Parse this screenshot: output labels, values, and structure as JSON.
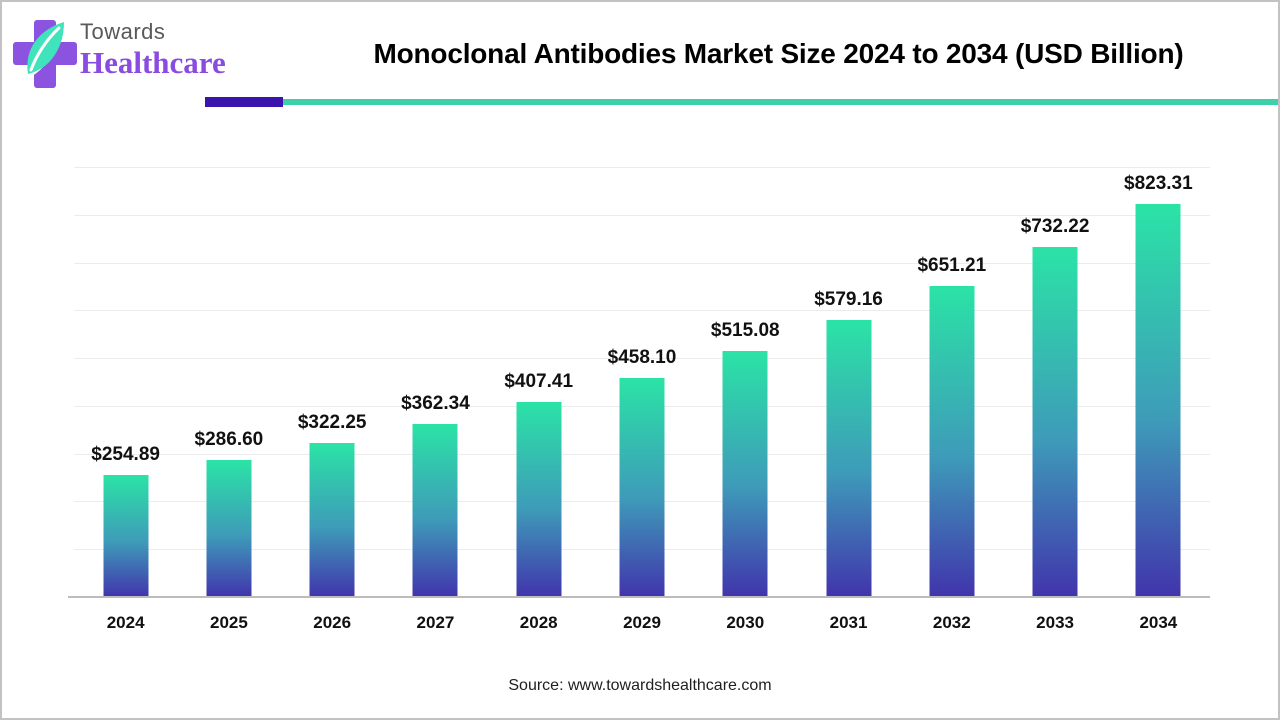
{
  "header": {
    "logo": {
      "line1": "Towards",
      "line2": "Healthcare"
    },
    "title": "Monoclonal Antibodies Market Size 2024 to 2034 (USD Billion)"
  },
  "chart_data": {
    "type": "bar",
    "title": "Monoclonal Antibodies Market Size 2024 to 2034 (USD Billion)",
    "unit": "USD Billion",
    "categories": [
      "2024",
      "2025",
      "2026",
      "2027",
      "2028",
      "2029",
      "2030",
      "2031",
      "2032",
      "2033",
      "2034"
    ],
    "values": [
      254.89,
      286.6,
      322.25,
      362.34,
      407.41,
      458.1,
      515.08,
      579.16,
      651.21,
      732.22,
      823.31
    ],
    "value_labels": [
      "$254.89",
      "$286.60",
      "$322.25",
      "$362.34",
      "$407.41",
      "$458.10",
      "$515.08",
      "$579.16",
      "$651.21",
      "$732.22",
      "$823.31"
    ],
    "xlabel": "",
    "ylabel": "",
    "ylim": [
      0,
      900
    ],
    "grid_step": 100,
    "grid": "horizontal-only",
    "legend": "none",
    "bar_gradient_top": "#2be3a6",
    "bar_gradient_mid": "#3e9bb9",
    "bar_gradient_bottom": "#4134ac"
  },
  "footer": {
    "source": "Source: www.towardshealthcare.com"
  },
  "colors": {
    "accent_purple": "#3a14ad",
    "accent_teal": "#3ed0a8",
    "logo_purple_text": "#8a4be0",
    "logo_gray_text": "#58595b",
    "logo_cross": "#8c52e0",
    "logo_leaf": "#3fe3bc",
    "grid_line": "#ececec",
    "axis_line": "#bcbcbc",
    "label_color": "#111111"
  }
}
